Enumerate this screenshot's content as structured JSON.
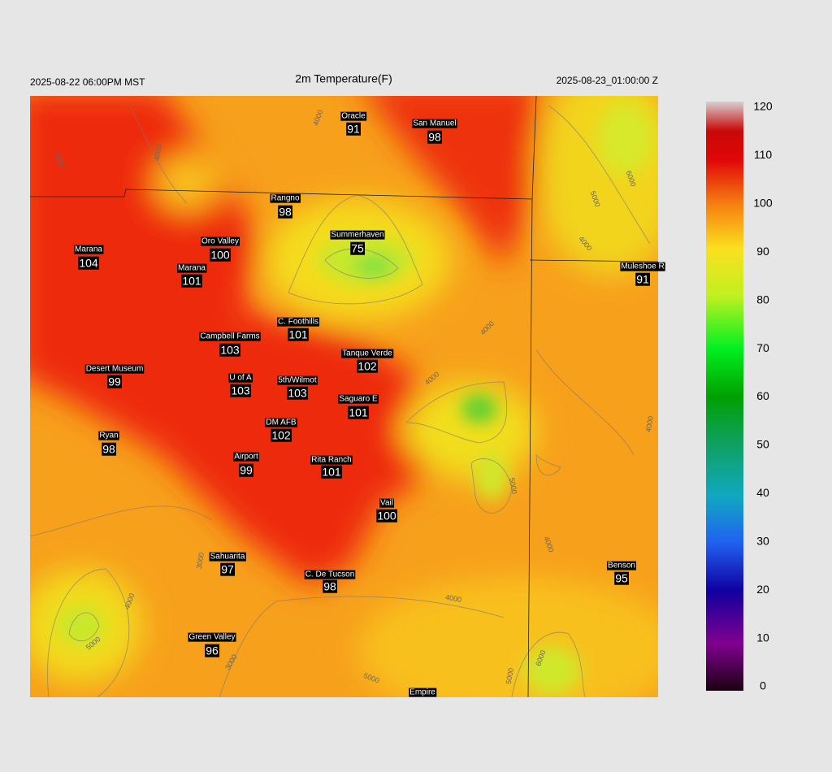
{
  "header": {
    "left": "2025-08-22 06:00PM MST",
    "title": "2m Temperature(F)",
    "right": "2025-08-23_01:00:00 Z"
  },
  "stations": [
    {
      "name": "Oracle",
      "value": 91
    },
    {
      "name": "San Manuel",
      "value": 98
    },
    {
      "name": "Rangno",
      "value": 98
    },
    {
      "name": "Summerhaven",
      "value": 75
    },
    {
      "name": "Marana",
      "value": 104
    },
    {
      "name": "Oro Valley",
      "value": 100
    },
    {
      "name": "Marana",
      "value": 101
    },
    {
      "name": "Muleshoe R",
      "value": 91
    },
    {
      "name": "C. Foothills",
      "value": 101
    },
    {
      "name": "Campbell Farms",
      "value": 103
    },
    {
      "name": "Tanque Verde",
      "value": 102
    },
    {
      "name": "Desert Museum",
      "value": 99
    },
    {
      "name": "U of A",
      "value": 103
    },
    {
      "name": "5th/Wilmot",
      "value": 103
    },
    {
      "name": "Saguaro E",
      "value": 101
    },
    {
      "name": "DM AFB",
      "value": 102
    },
    {
      "name": "Ryan",
      "value": 98
    },
    {
      "name": "Airport",
      "value": 99
    },
    {
      "name": "Rita Ranch",
      "value": 101
    },
    {
      "name": "Vail",
      "value": 100
    },
    {
      "name": "Sahuarita",
      "value": 97
    },
    {
      "name": "C. De Tucson",
      "value": 98
    },
    {
      "name": "Benson",
      "value": 95
    },
    {
      "name": "Green Valley",
      "value": 96
    },
    {
      "name": "Empire",
      "value": null
    }
  ],
  "colorbar": {
    "range": [
      0,
      120
    ],
    "ticks": [
      0,
      10,
      20,
      30,
      40,
      50,
      60,
      70,
      80,
      90,
      100,
      110,
      120
    ]
  },
  "contours": [
    "4000",
    "3000",
    "4000",
    "6000",
    "5000",
    "4000",
    "4000",
    "4000",
    "5000",
    "4000",
    "4000",
    "3000",
    "4000",
    "5000",
    "3000",
    "4000",
    "5000",
    "5000",
    "6000"
  ]
}
